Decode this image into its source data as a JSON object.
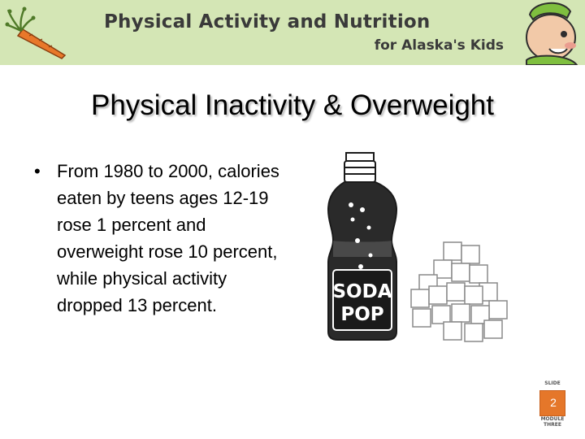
{
  "header": {
    "title": "Physical Activity and Nutrition",
    "subtitle": "for Alaska's Kids",
    "band_color": "#d4e6b5",
    "logo_icon": "carrot-icon",
    "mascot_icon": "kid-mascot-icon"
  },
  "slide": {
    "title": "Physical Inactivity & Overweight",
    "bullets": [
      "From 1980 to 2000, calories eaten by teens ages 12-19 rose 1 percent and overweight rose 10 percent, while physical activity dropped 13 percent."
    ],
    "illustration": {
      "bottle_label_line1": "SODA",
      "bottle_label_line2": "POP",
      "icons": [
        "soda-bottle-icon",
        "sugar-cubes-icon"
      ]
    }
  },
  "badge": {
    "top_label": "SLIDE",
    "number": "2",
    "bottom_label_line1": "MODULE",
    "bottom_label_line2": "THREE",
    "color": "#e5772a"
  }
}
